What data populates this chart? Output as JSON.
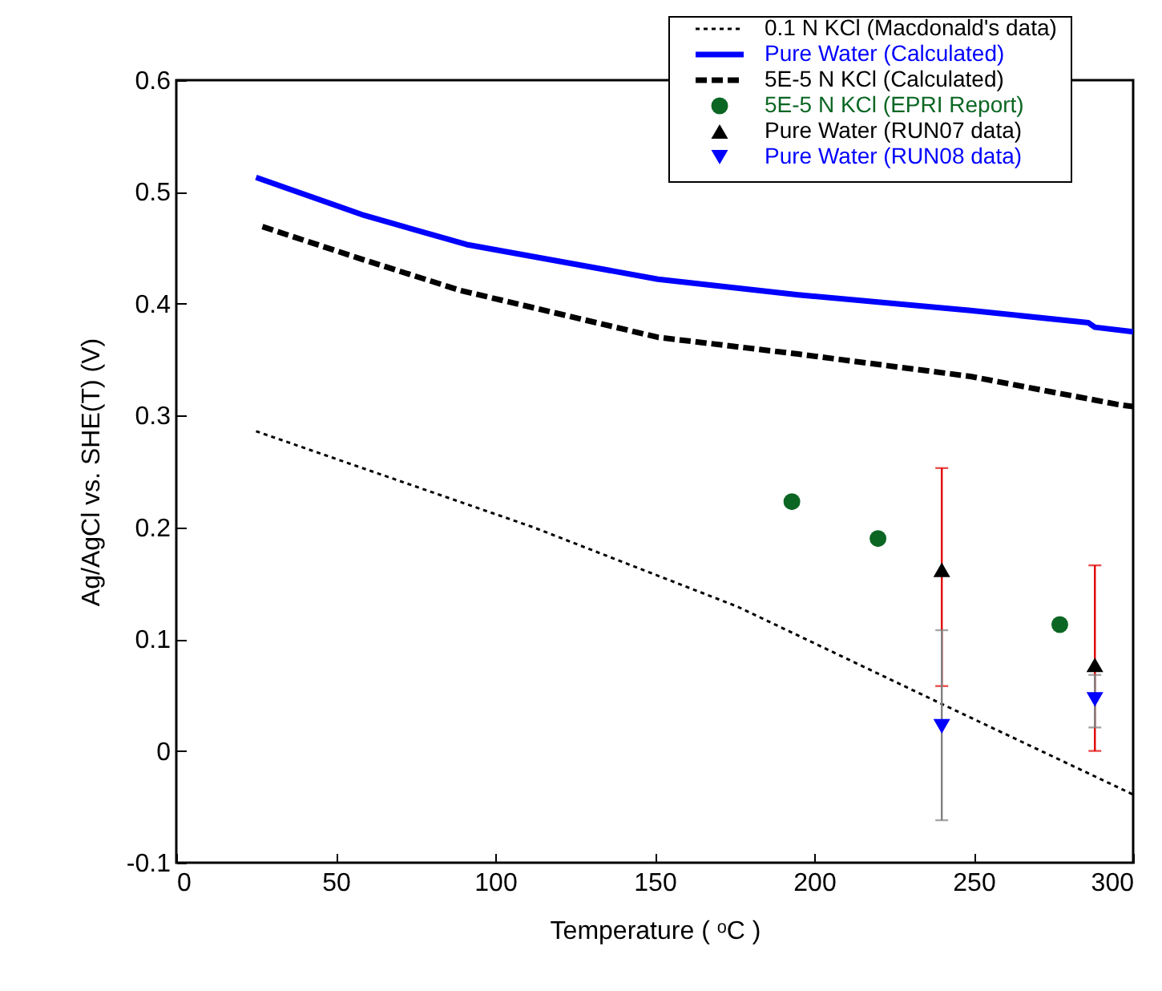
{
  "chart_data": {
    "type": "line",
    "xlabel": "Temperature ( ᵒC )",
    "ylabel": "Ag/AgCl vs. SHE(T) (V)",
    "xlim": [
      0,
      300
    ],
    "xticks": [
      0,
      50,
      100,
      150,
      200,
      250,
      300
    ],
    "ylim": [
      -0.1,
      0.6
    ],
    "yticks": [
      -0.1,
      0,
      0.1,
      0.2,
      0.3,
      0.4,
      0.5,
      0.6
    ],
    "grid": false,
    "legend": "top right",
    "series": [
      {
        "name": "0.1 N KCl (Macdonald's data)",
        "type": "line",
        "line_style": "dotted",
        "color": "#000000",
        "x": [
          25,
          112,
          176,
          240,
          300
        ],
        "values": [
          0.286,
          0.2,
          0.129,
          0.042,
          -0.039
        ]
      },
      {
        "name": "Pure Water (Calculated)",
        "type": "line",
        "line_style": "solid",
        "color": "#0000ff",
        "x": [
          25,
          59,
          91,
          151,
          195,
          249,
          286,
          288,
          300
        ],
        "values": [
          0.513,
          0.479,
          0.453,
          0.422,
          0.408,
          0.394,
          0.383,
          0.379,
          0.375
        ]
      },
      {
        "name": "5E-5 N KCl (Calculated)",
        "type": "line",
        "line_style": "dashed",
        "color": "#000000",
        "x": [
          27,
          58,
          89,
          151,
          195,
          249,
          295,
          300
        ],
        "values": [
          0.469,
          0.44,
          0.412,
          0.37,
          0.355,
          0.335,
          0.31,
          0.308
        ]
      },
      {
        "name": "5E-5 N KCl (EPRI Report)",
        "type": "scatter",
        "marker": "circle",
        "color": "#0b6623",
        "x": [
          193,
          220,
          277
        ],
        "values": [
          0.223,
          0.19,
          0.113
        ]
      },
      {
        "name": "Pure Water (RUN07 data)",
        "type": "scatter",
        "marker": "triangle",
        "color": "#000000",
        "x": [
          240,
          288
        ],
        "values": [
          0.162,
          0.077
        ],
        "errors": [
          [
            0.058,
            0.253
          ],
          [
            0.0,
            0.166
          ]
        ]
      },
      {
        "name": "Pure Water (RUN08 data)",
        "type": "scatter",
        "marker": "triangle-down",
        "color": "#0000ff",
        "x": [
          240,
          288
        ],
        "values": [
          0.022,
          0.046
        ],
        "errors": [
          [
            -0.062,
            0.108
          ],
          [
            0.021,
            0.068
          ]
        ]
      }
    ]
  }
}
